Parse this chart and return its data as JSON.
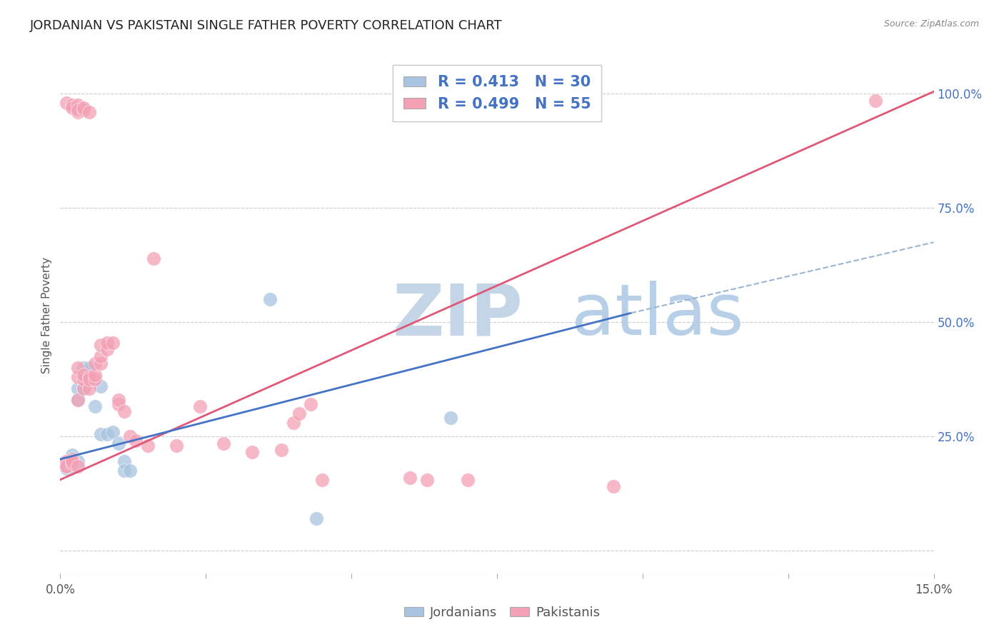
{
  "title": "JORDANIAN VS PAKISTANI SINGLE FATHER POVERTY CORRELATION CHART",
  "source": "Source: ZipAtlas.com",
  "ylabel": "Single Father Poverty",
  "y_ticks": [
    0.0,
    0.25,
    0.5,
    0.75,
    1.0
  ],
  "y_tick_labels": [
    "",
    "25.0%",
    "50.0%",
    "75.0%",
    "100.0%"
  ],
  "x_range": [
    0.0,
    0.15
  ],
  "y_range": [
    -0.05,
    1.08
  ],
  "jordanian_color": "#a8c4e0",
  "pakistani_color": "#f4a0b5",
  "jordanian_line_color": "#4472c4",
  "pakistani_line_color": "#e05878",
  "dashed_line_color": "#9ab5d0",
  "background_color": "#ffffff",
  "jordanians_label": "Jordanians",
  "pakistanis_label": "Pakistanis",
  "jordanian_R": 0.413,
  "pakistani_R": 0.499,
  "jordanian_N": 30,
  "pakistani_N": 55,
  "pk_line": [
    [
      0.0,
      0.155
    ],
    [
      0.15,
      1.005
    ]
  ],
  "jd_line": [
    [
      0.0,
      0.2
    ],
    [
      0.098,
      0.52
    ]
  ],
  "dash_line": [
    [
      0.098,
      0.52
    ],
    [
      0.15,
      0.675
    ]
  ],
  "jordanian_points": [
    [
      0.001,
      0.195
    ],
    [
      0.001,
      0.19
    ],
    [
      0.001,
      0.185
    ],
    [
      0.001,
      0.18
    ],
    [
      0.002,
      0.185
    ],
    [
      0.002,
      0.19
    ],
    [
      0.002,
      0.195
    ],
    [
      0.002,
      0.2
    ],
    [
      0.002,
      0.21
    ],
    [
      0.003,
      0.195
    ],
    [
      0.003,
      0.33
    ],
    [
      0.003,
      0.355
    ],
    [
      0.004,
      0.355
    ],
    [
      0.004,
      0.375
    ],
    [
      0.004,
      0.4
    ],
    [
      0.005,
      0.375
    ],
    [
      0.005,
      0.395
    ],
    [
      0.005,
      0.4
    ],
    [
      0.006,
      0.315
    ],
    [
      0.007,
      0.36
    ],
    [
      0.007,
      0.255
    ],
    [
      0.008,
      0.255
    ],
    [
      0.009,
      0.26
    ],
    [
      0.01,
      0.235
    ],
    [
      0.011,
      0.195
    ],
    [
      0.011,
      0.175
    ],
    [
      0.012,
      0.175
    ],
    [
      0.036,
      0.55
    ],
    [
      0.067,
      0.29
    ],
    [
      0.044,
      0.07
    ]
  ],
  "pakistani_points": [
    [
      0.001,
      0.185
    ],
    [
      0.001,
      0.195
    ],
    [
      0.001,
      0.185
    ],
    [
      0.001,
      0.98
    ],
    [
      0.002,
      0.19
    ],
    [
      0.002,
      0.2
    ],
    [
      0.002,
      0.195
    ],
    [
      0.002,
      0.975
    ],
    [
      0.002,
      0.97
    ],
    [
      0.003,
      0.185
    ],
    [
      0.003,
      0.33
    ],
    [
      0.003,
      0.38
    ],
    [
      0.003,
      0.4
    ],
    [
      0.003,
      0.975
    ],
    [
      0.003,
      0.96
    ],
    [
      0.003,
      0.965
    ],
    [
      0.004,
      0.355
    ],
    [
      0.004,
      0.375
    ],
    [
      0.004,
      0.385
    ],
    [
      0.004,
      0.965
    ],
    [
      0.004,
      0.97
    ],
    [
      0.005,
      0.38
    ],
    [
      0.005,
      0.355
    ],
    [
      0.005,
      0.375
    ],
    [
      0.005,
      0.96
    ],
    [
      0.006,
      0.375
    ],
    [
      0.006,
      0.385
    ],
    [
      0.006,
      0.41
    ],
    [
      0.007,
      0.41
    ],
    [
      0.007,
      0.425
    ],
    [
      0.007,
      0.45
    ],
    [
      0.008,
      0.44
    ],
    [
      0.008,
      0.455
    ],
    [
      0.009,
      0.455
    ],
    [
      0.01,
      0.32
    ],
    [
      0.01,
      0.33
    ],
    [
      0.011,
      0.305
    ],
    [
      0.012,
      0.25
    ],
    [
      0.013,
      0.24
    ],
    [
      0.015,
      0.23
    ],
    [
      0.016,
      0.64
    ],
    [
      0.02,
      0.23
    ],
    [
      0.024,
      0.315
    ],
    [
      0.028,
      0.235
    ],
    [
      0.033,
      0.215
    ],
    [
      0.038,
      0.22
    ],
    [
      0.04,
      0.28
    ],
    [
      0.041,
      0.3
    ],
    [
      0.043,
      0.32
    ],
    [
      0.045,
      0.155
    ],
    [
      0.06,
      0.16
    ],
    [
      0.063,
      0.155
    ],
    [
      0.07,
      0.155
    ],
    [
      0.095,
      0.14
    ],
    [
      0.14,
      0.985
    ]
  ]
}
